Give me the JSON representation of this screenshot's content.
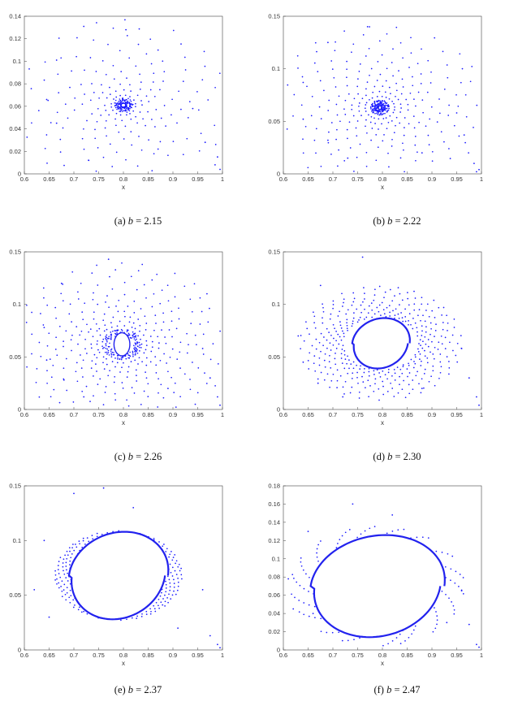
{
  "colors": {
    "points": "#1a1aff",
    "axis": "#444444",
    "ring": "#2222ee"
  },
  "chart_data": [
    {
      "id": "a",
      "type": "scatter",
      "caption": {
        "tag": "(a)",
        "var": "b",
        "eq": "= 2.15"
      },
      "xlabel": "x",
      "ylabel": "",
      "xlim": [
        0.6,
        1.0
      ],
      "ylim": [
        0,
        0.14
      ],
      "xticks": [
        "0.6",
        "0.65",
        "0.7",
        "0.75",
        "0.8",
        "0.85",
        "0.9",
        "0.95",
        "1"
      ],
      "yticks": [
        "0",
        "0.02",
        "0.04",
        "0.06",
        "0.08",
        "0.1",
        "0.12",
        "0.14"
      ],
      "focus": {
        "x": 0.8,
        "y": 0.061
      },
      "ring": {
        "rx": 0.0,
        "ry": 0.0
      },
      "spiral": {
        "arms": 16,
        "reach": 0.21,
        "twist": 2.0
      },
      "outliers": [
        [
          0.72,
          0.131
        ],
        [
          0.805,
          0.128
        ],
        [
          0.665,
          0.101
        ],
        [
          0.645,
          0.066
        ],
        [
          0.665,
          0.045
        ],
        [
          0.94,
          0.058
        ],
        [
          0.965,
          0.028
        ],
        [
          0.99,
          0.015
        ],
        [
          0.995,
          0.004
        ],
        [
          0.985,
          0.008
        ],
        [
          0.73,
          0.012
        ],
        [
          0.87,
          0.022
        ]
      ]
    },
    {
      "id": "b",
      "type": "scatter",
      "caption": {
        "tag": "(b)",
        "var": "b",
        "eq": "= 2.22"
      },
      "xlabel": "x",
      "ylabel": "",
      "xlim": [
        0.6,
        1.0
      ],
      "ylim": [
        0,
        0.15
      ],
      "xticks": [
        "0.6",
        "0.65",
        "0.7",
        "0.75",
        "0.8",
        "0.85",
        "0.9",
        "0.95",
        "1"
      ],
      "yticks": [
        "0",
        "0.05",
        "0.1",
        "0.15"
      ],
      "focus": {
        "x": 0.795,
        "y": 0.063
      },
      "ring": {
        "rx": 0.003,
        "ry": 0.002
      },
      "spiral": {
        "arms": 22,
        "reach": 0.2,
        "twist": 2.2
      },
      "outliers": [
        [
          0.77,
          0.14
        ],
        [
          0.69,
          0.125
        ],
        [
          0.64,
          0.087
        ],
        [
          0.64,
          0.052
        ],
        [
          0.69,
          0.032
        ],
        [
          0.95,
          0.058
        ],
        [
          0.965,
          0.037
        ],
        [
          0.985,
          0.01
        ],
        [
          0.995,
          0.004
        ],
        [
          0.99,
          0.002
        ],
        [
          0.73,
          0.015
        ],
        [
          0.88,
          0.02
        ]
      ]
    },
    {
      "id": "c",
      "type": "scatter",
      "caption": {
        "tag": "(c)",
        "var": "b",
        "eq": "= 2.26"
      },
      "xlabel": "x",
      "ylabel": "",
      "xlim": [
        0.6,
        1.0
      ],
      "ylim": [
        0,
        0.15
      ],
      "xticks": [
        "0.6",
        "0.65",
        "0.7",
        "0.75",
        "0.8",
        "0.85",
        "0.9",
        "0.95",
        "1"
      ],
      "yticks": [
        "0",
        "0.05",
        "0.1",
        "0.15"
      ],
      "focus": {
        "x": 0.797,
        "y": 0.062
      },
      "ring": {
        "rx": 0.016,
        "ry": 0.011
      },
      "spiral": {
        "arms": 26,
        "reach": 0.2,
        "twist": 2.2
      },
      "outliers": [
        [
          0.77,
          0.143
        ],
        [
          0.675,
          0.12
        ],
        [
          0.64,
          0.078
        ],
        [
          0.645,
          0.047
        ],
        [
          0.68,
          0.028
        ],
        [
          0.96,
          0.058
        ],
        [
          0.975,
          0.03
        ],
        [
          0.99,
          0.012
        ],
        [
          0.995,
          0.004
        ],
        [
          0.72,
          0.012
        ],
        [
          0.89,
          0.02
        ]
      ]
    },
    {
      "id": "d",
      "type": "scatter",
      "caption": {
        "tag": "(d)",
        "var": "b",
        "eq": "= 2.30"
      },
      "xlabel": "x",
      "ylabel": "",
      "xlim": [
        0.6,
        1.0
      ],
      "ylim": [
        0,
        0.15
      ],
      "xticks": [
        "0.6",
        "0.65",
        "0.7",
        "0.75",
        "0.8",
        "0.85",
        "0.9",
        "0.95",
        "1"
      ],
      "yticks": [
        "0",
        "0.05",
        "0.1",
        "0.15"
      ],
      "focus": {
        "x": 0.797,
        "y": 0.063
      },
      "ring": {
        "rx": 0.058,
        "ry": 0.024
      },
      "spiral": {
        "arms": 26,
        "reach": 0.14,
        "twist": 1.8
      },
      "outliers": [
        [
          0.76,
          0.145
        ],
        [
          0.675,
          0.118
        ],
        [
          0.63,
          0.07
        ],
        [
          0.64,
          0.045
        ],
        [
          0.67,
          0.025
        ],
        [
          0.96,
          0.058
        ],
        [
          0.975,
          0.03
        ],
        [
          0.99,
          0.012
        ],
        [
          0.995,
          0.004
        ],
        [
          0.72,
          0.012
        ],
        [
          0.88,
          0.02
        ]
      ]
    },
    {
      "id": "e",
      "type": "scatter",
      "caption": {
        "tag": "(e)",
        "var": "b",
        "eq": "= 2.37"
      },
      "xlabel": "x",
      "ylabel": "",
      "xlim": [
        0.6,
        1.0
      ],
      "ylim": [
        0,
        0.15
      ],
      "xticks": [
        "0.6",
        "0.65",
        "0.7",
        "0.75",
        "0.8",
        "0.85",
        "0.9",
        "0.95",
        "1"
      ],
      "yticks": [
        "0",
        "0.05",
        "0.1",
        "0.15"
      ],
      "focus": {
        "x": 0.79,
        "y": 0.068
      },
      "ring": {
        "rx": 0.1,
        "ry": 0.04
      },
      "spiral": {
        "arms": 22,
        "reach": 0.08,
        "twist": 1.2
      },
      "outliers": [
        [
          0.7,
          0.143
        ],
        [
          0.76,
          0.148
        ],
        [
          0.64,
          0.1
        ],
        [
          0.62,
          0.055
        ],
        [
          0.65,
          0.03
        ],
        [
          0.96,
          0.055
        ],
        [
          0.975,
          0.013
        ],
        [
          0.99,
          0.005
        ],
        [
          0.995,
          0.002
        ],
        [
          0.91,
          0.02
        ],
        [
          0.82,
          0.13
        ]
      ]
    },
    {
      "id": "f",
      "type": "scatter",
      "caption": {
        "tag": "(f)",
        "var": "b",
        "eq": "= 2.47"
      },
      "xlabel": "x",
      "ylabel": "",
      "xlim": [
        0.6,
        1.0
      ],
      "ylim": [
        0,
        0.18
      ],
      "xticks": [
        "0.6",
        "0.65",
        "0.7",
        "0.75",
        "0.8",
        "0.85",
        "0.9",
        "0.95",
        "1"
      ],
      "yticks": [
        "0",
        "0.02",
        "0.04",
        "0.06",
        "0.08",
        "0.1",
        "0.12",
        "0.14",
        "0.16",
        "0.18"
      ],
      "focus": {
        "x": 0.79,
        "y": 0.07
      },
      "ring": {
        "rx": 0.135,
        "ry": 0.056
      },
      "spiral": {
        "arms": 18,
        "reach": 0.05,
        "twist": 0.8
      },
      "outliers": [
        [
          0.74,
          0.16
        ],
        [
          0.82,
          0.148
        ],
        [
          0.65,
          0.13
        ],
        [
          0.61,
          0.078
        ],
        [
          0.62,
          0.045
        ],
        [
          0.96,
          0.065
        ],
        [
          0.975,
          0.028
        ],
        [
          0.99,
          0.006
        ],
        [
          0.995,
          0.003
        ],
        [
          0.66,
          0.04
        ],
        [
          0.93,
          0.03
        ]
      ]
    }
  ]
}
